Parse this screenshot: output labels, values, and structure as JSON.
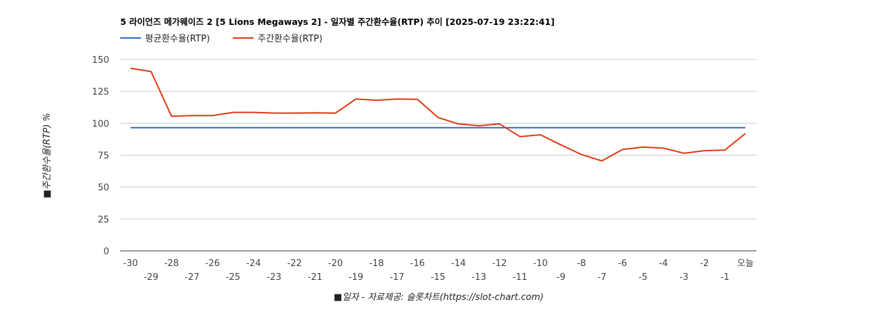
{
  "chart_data": {
    "type": "line",
    "title": "5 라이언즈 메가웨이즈 2 [5 Lions Megaways 2] - 일자별 주간환수율(RTP) 추이 [2025-07-19 23:22:41]",
    "xlabel": "■일자 - 자료제공: 슬롯차트(https://slot-chart.com)",
    "ylabel": "■주간환수율(RTP) %",
    "ylim": [
      0,
      150
    ],
    "yticks": [
      "0",
      "25",
      "50",
      "75",
      "100",
      "125",
      "150"
    ],
    "categories": [
      "-30",
      "-29",
      "-28",
      "-27",
      "-26",
      "-25",
      "-24",
      "-23",
      "-22",
      "-21",
      "-20",
      "-19",
      "-18",
      "-17",
      "-16",
      "-15",
      "-14",
      "-13",
      "-12",
      "-11",
      "-10",
      "-9",
      "-8",
      "-7",
      "-6",
      "-5",
      "-4",
      "-3",
      "-2",
      "-1",
      "오늘"
    ],
    "legend_position": "top-left",
    "grid": true,
    "series": [
      {
        "name": "평균환수율(RTP)",
        "color": "#3366cc",
        "values": [
          96.5,
          96.5,
          96.5,
          96.5,
          96.5,
          96.5,
          96.5,
          96.5,
          96.5,
          96.5,
          96.5,
          96.5,
          96.5,
          96.5,
          96.5,
          96.5,
          96.5,
          96.5,
          96.5,
          96.5,
          96.5,
          96.5,
          96.5,
          96.5,
          96.5,
          96.5,
          96.5,
          96.5,
          96.5,
          96.5,
          96.5
        ]
      },
      {
        "name": "주간환수율(RTP)",
        "color": "#dc3912",
        "values": [
          143,
          140.5,
          105.5,
          106,
          106,
          108.5,
          108.5,
          108,
          108,
          108.2,
          108,
          119,
          118,
          119,
          118.7,
          104.5,
          99.5,
          98,
          99.5,
          89.5,
          91,
          83,
          75.5,
          70.5,
          79.5,
          81.3,
          80.5,
          76.5,
          78.5,
          79,
          92
        ]
      }
    ]
  }
}
